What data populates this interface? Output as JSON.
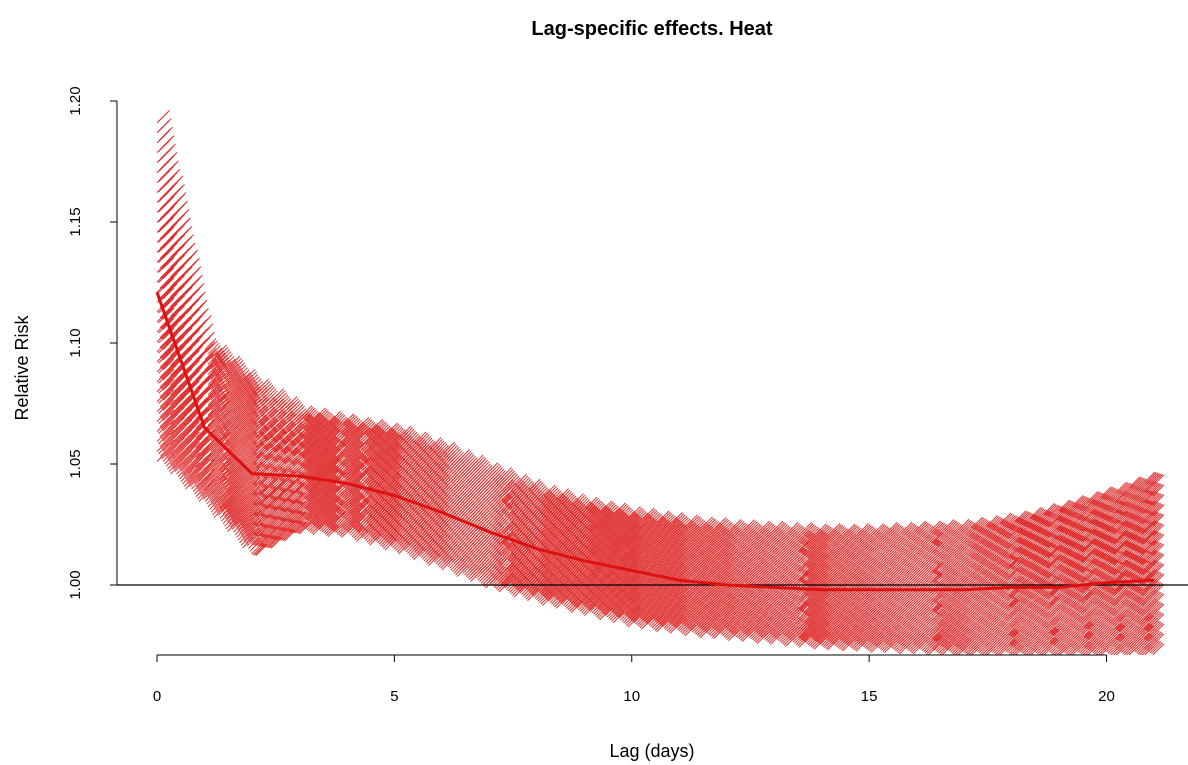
{
  "chart_data": {
    "type": "line",
    "title": "Lag-specific effects. Heat",
    "xlabel": "Lag (days)",
    "ylabel": "Relative Risk",
    "xlim": [
      0,
      21
    ],
    "ylim": [
      0.971,
      1.21
    ],
    "x_ticks": [
      0,
      5,
      10,
      15,
      20
    ],
    "y_ticks": [
      1.0,
      1.05,
      1.1,
      1.15,
      1.2
    ],
    "y_tick_labels": [
      "1.00",
      "1.05",
      "1.10",
      "1.15",
      "1.20"
    ],
    "reference_line": 1.0,
    "grid": false,
    "colors": {
      "series": "#dd1111",
      "band": "#e03030",
      "reference": "#000000"
    },
    "series": [
      {
        "x": [
          0,
          1,
          2,
          3,
          4,
          5,
          6,
          7,
          8,
          9,
          10,
          11,
          12,
          13,
          14,
          15,
          16,
          17,
          18,
          19,
          20,
          21
        ],
        "y": [
          1.121,
          1.065,
          1.046,
          1.045,
          1.042,
          1.037,
          1.03,
          1.022,
          1.015,
          1.01,
          1.006,
          1.002,
          1.0,
          0.999,
          0.998,
          0.998,
          0.998,
          0.998,
          0.999,
          0.999,
          1.001,
          1.002
        ],
        "lower": [
          1.051,
          1.032,
          1.011,
          1.021,
          1.019,
          1.013,
          1.006,
          0.998,
          0.992,
          0.987,
          0.982,
          0.979,
          0.977,
          0.975,
          0.973,
          0.972,
          0.971,
          0.97,
          0.97,
          0.97,
          0.97,
          0.97
        ],
        "upper": [
          1.195,
          1.099,
          1.082,
          1.07,
          1.066,
          1.062,
          1.055,
          1.046,
          1.038,
          1.032,
          1.028,
          1.025,
          1.023,
          1.022,
          1.021,
          1.021,
          1.022,
          1.023,
          1.026,
          1.031,
          1.037,
          1.044
        ]
      }
    ]
  }
}
